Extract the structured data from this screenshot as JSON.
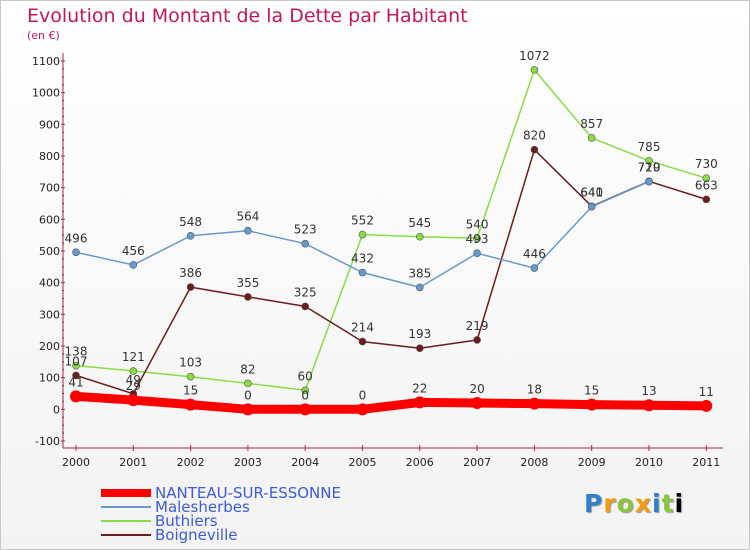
{
  "chart_data": {
    "type": "line",
    "title": "Evolution du Montant de la Dette par Habitant",
    "subtitle": "(en €)",
    "categories": [
      "2000",
      "2001",
      "2002",
      "2003",
      "2004",
      "2005",
      "2006",
      "2007",
      "2008",
      "2009",
      "2010",
      "2011"
    ],
    "ylim": [
      -100,
      1100
    ],
    "yticks": [
      -100,
      0,
      100,
      200,
      300,
      400,
      500,
      600,
      700,
      800,
      900,
      1000,
      1100
    ],
    "grid": false,
    "legend_position": "bottom-left",
    "series": [
      {
        "name": "NANTEAU-SUR-ESSONNE",
        "color": "#ff0000",
        "values": [
          41,
          29,
          15,
          0,
          0,
          0,
          22,
          20,
          18,
          15,
          13,
          11
        ],
        "labels": [
          "41",
          "29",
          "15",
          "0",
          "0",
          "0",
          "22",
          "20",
          "18",
          "15",
          "13",
          "11"
        ]
      },
      {
        "name": "Malesherbes",
        "color": "#6699cc",
        "values": [
          496,
          456,
          548,
          564,
          523,
          432,
          385,
          493,
          446,
          640,
          719,
          null
        ],
        "labels": [
          "496",
          "456",
          "548",
          "564",
          "523",
          "432",
          "385",
          "493",
          "446",
          "640",
          "719",
          ""
        ]
      },
      {
        "name": "Buthiers",
        "color": "#88dd44",
        "values": [
          138,
          121,
          103,
          82,
          60,
          552,
          545,
          540,
          1072,
          857,
          785,
          730
        ],
        "labels": [
          "138",
          "121",
          "103",
          "82",
          "60",
          "552",
          "545",
          "540",
          "1072",
          "857",
          "785",
          "730"
        ]
      },
      {
        "name": "Boigneville",
        "color": "#6b1d1d",
        "values": [
          107,
          49,
          386,
          355,
          325,
          214,
          193,
          219,
          820,
          641,
          720,
          663
        ],
        "labels": [
          "107",
          "49",
          "386",
          "355",
          "325",
          "214",
          "193",
          "219",
          "820",
          "641",
          "720",
          "663"
        ]
      }
    ]
  },
  "logo": {
    "letters": [
      "P",
      "r",
      "o",
      "x",
      "i",
      "t",
      "i"
    ]
  }
}
